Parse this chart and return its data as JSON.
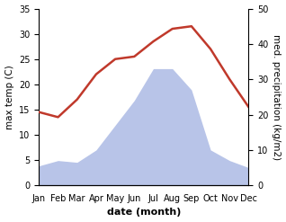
{
  "months": [
    "Jan",
    "Feb",
    "Mar",
    "Apr",
    "May",
    "Jun",
    "Jul",
    "Aug",
    "Sep",
    "Oct",
    "Nov",
    "Dec"
  ],
  "temperature": [
    14.5,
    13.5,
    17.0,
    22.0,
    25.0,
    25.5,
    28.5,
    31.0,
    31.5,
    27.0,
    21.0,
    15.5
  ],
  "precipitation": [
    5.5,
    7.0,
    6.5,
    10.0,
    17.0,
    24.0,
    33.0,
    33.0,
    27.0,
    10.0,
    7.0,
    5.0
  ],
  "temp_color": "#c0392b",
  "precip_color": "#b8c4e8",
  "temp_ylim": [
    0,
    35
  ],
  "precip_ylim": [
    0,
    50
  ],
  "temp_yticks": [
    0,
    5,
    10,
    15,
    20,
    25,
    30,
    35
  ],
  "precip_yticks": [
    0,
    10,
    20,
    30,
    40,
    50
  ],
  "xlabel": "date (month)",
  "ylabel_left": "max temp (C)",
  "ylabel_right": "med. precipitation (kg/m2)",
  "background_color": "#ffffff",
  "xlabel_fontsize": 8,
  "ylabel_fontsize": 7.5,
  "tick_fontsize": 7,
  "line_width": 1.8,
  "precip_scale_factor": 0.7
}
